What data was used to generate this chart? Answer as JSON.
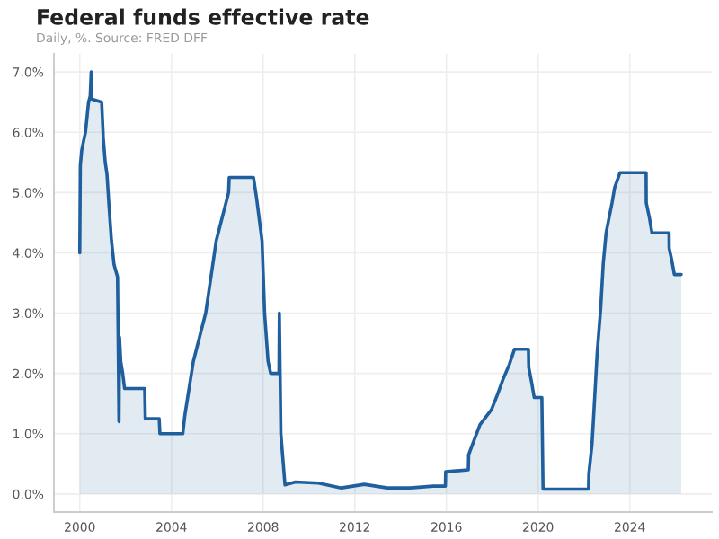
{
  "chart_data": {
    "type": "area",
    "title": "Federal funds effective rate",
    "subtitle": "Daily, %. Source: FRED DFF",
    "xlim": [
      "1998-11-15",
      "2027-08-01"
    ],
    "ylim": [
      -0.3,
      7.3
    ],
    "xticks": [
      {
        "value": "2000-01-01",
        "label": "2000"
      },
      {
        "value": "2004-01-01",
        "label": "2004"
      },
      {
        "value": "2008-01-01",
        "label": "2008"
      },
      {
        "value": "2012-01-01",
        "label": "2012"
      },
      {
        "value": "2016-01-01",
        "label": "2016"
      },
      {
        "value": "2020-01-01",
        "label": "2020"
      },
      {
        "value": "2024-01-01",
        "label": "2024"
      }
    ],
    "yticks": [
      {
        "value": 0,
        "label": "0.0%"
      },
      {
        "value": 1,
        "label": "1.0%"
      },
      {
        "value": 2,
        "label": "2.0%"
      },
      {
        "value": 3,
        "label": "3.0%"
      },
      {
        "value": 4,
        "label": "4.0%"
      },
      {
        "value": 5,
        "label": "5.0%"
      },
      {
        "value": 6,
        "label": "6.0%"
      },
      {
        "value": 7,
        "label": "7.0%"
      }
    ],
    "grid": true,
    "legend": false,
    "marker": "none",
    "line_style": "solid",
    "series": [
      {
        "color": "#1f5f9e",
        "x": [
          "2000-01-01",
          "2000-01-10",
          "2000-02-01",
          "2000-03-01",
          "2000-04-01",
          "2000-05-20",
          "2000-06-15",
          "2000-07-01",
          "2000-07-03",
          "2000-07-10",
          "2000-12-15",
          "2001-01-10",
          "2001-02-10",
          "2001-03-10",
          "2001-04-10",
          "2001-05-20",
          "2001-07-01",
          "2001-08-25",
          "2001-09-17",
          "2001-09-25",
          "2001-10-15",
          "2001-11-15",
          "2001-12-15",
          "2002-06-01",
          "2002-11-01",
          "2002-11-10",
          "2003-06-20",
          "2003-07-01",
          "2004-06-30",
          "2004-08-01",
          "2004-12-15",
          "2005-06-30",
          "2005-12-15",
          "2006-06-30",
          "2006-07-10",
          "2007-08-01",
          "2007-09-20",
          "2007-12-15",
          "2008-01-25",
          "2008-03-20",
          "2008-05-01",
          "2008-09-10",
          "2008-09-16",
          "2008-10-10",
          "2008-12-15",
          "2009-06-01",
          "2010-06-01",
          "2011-06-01",
          "2012-06-01",
          "2013-06-01",
          "2014-06-01",
          "2015-06-01",
          "2015-12-15",
          "2015-12-20",
          "2016-12-15",
          "2016-12-20",
          "2017-03-20",
          "2017-06-20",
          "2017-12-20",
          "2018-03-25",
          "2018-06-20",
          "2018-09-30",
          "2018-12-20",
          "2019-07-31",
          "2019-08-05",
          "2019-09-20",
          "2019-10-31",
          "2020-03-01",
          "2020-03-20",
          "2022-03-15",
          "2022-03-20",
          "2022-05-10",
          "2022-06-20",
          "2022-07-30",
          "2022-09-25",
          "2022-11-05",
          "2022-12-20",
          "2023-02-05",
          "2023-03-25",
          "2023-05-05",
          "2023-07-30",
          "2024-09-18",
          "2024-09-20",
          "2024-11-10",
          "2024-12-20",
          "2025-09-18",
          "2025-09-20",
          "2025-10-31",
          "2025-12-12",
          "2026-03-31"
        ],
        "values": [
          4.0,
          5.45,
          5.7,
          5.85,
          6.0,
          6.5,
          6.6,
          7.0,
          6.6,
          6.55,
          6.5,
          5.9,
          5.5,
          5.3,
          4.8,
          4.2,
          3.8,
          3.6,
          1.2,
          2.6,
          2.2,
          2.0,
          1.75,
          1.75,
          1.75,
          1.25,
          1.25,
          1.0,
          1.0,
          1.3,
          2.2,
          3.0,
          4.2,
          5.0,
          5.25,
          5.25,
          4.9,
          4.2,
          3.0,
          2.2,
          2.0,
          2.0,
          3.0,
          1.0,
          0.15,
          0.2,
          0.18,
          0.1,
          0.16,
          0.1,
          0.1,
          0.13,
          0.13,
          0.37,
          0.4,
          0.65,
          0.9,
          1.15,
          1.4,
          1.65,
          1.9,
          2.15,
          2.4,
          2.4,
          2.1,
          1.85,
          1.6,
          1.6,
          0.08,
          0.08,
          0.33,
          0.83,
          1.58,
          2.33,
          3.08,
          3.83,
          4.33,
          4.58,
          4.83,
          5.08,
          5.33,
          5.33,
          4.83,
          4.58,
          4.33,
          4.33,
          4.08,
          3.88,
          3.64,
          3.64
        ]
      }
    ]
  }
}
